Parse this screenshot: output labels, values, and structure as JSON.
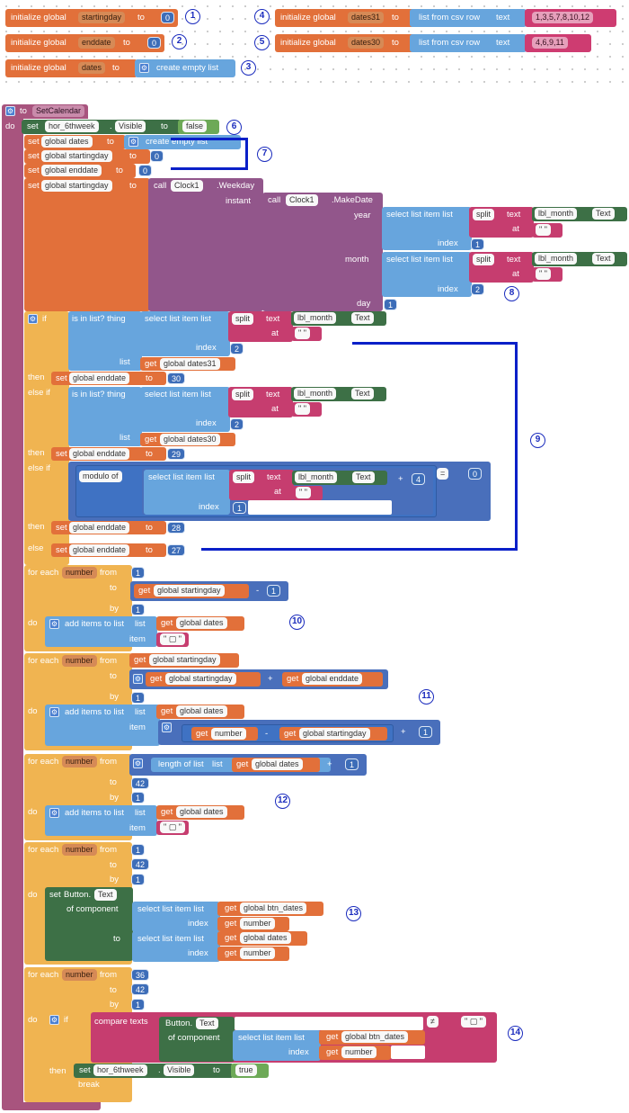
{
  "globals": {
    "startingday": {
      "kw": "initialize global",
      "name": "startingday",
      "to": "to",
      "value": "0",
      "marker": "1"
    },
    "enddate": {
      "kw": "initialize global",
      "name": "enddate",
      "to": "to",
      "value": "0",
      "marker": "2"
    },
    "dates": {
      "kw": "initialize global",
      "name": "dates",
      "to": "to",
      "value": "create empty list",
      "marker": "3"
    },
    "dates31": {
      "kw": "initialize global",
      "name": "dates31",
      "to": "to",
      "fn": "list from csv row",
      "textkw": "text",
      "value": "1,3,5,7,8,10,12",
      "marker": "4"
    },
    "dates30": {
      "kw": "initialize global",
      "name": "dates30",
      "to": "to",
      "fn": "list from csv row",
      "textkw": "text",
      "value": "4,6,9,11",
      "marker": "5"
    }
  },
  "proc": {
    "to": "to",
    "name": "SetCalendar",
    "do": "do"
  },
  "words": {
    "set": "set",
    "to": "to",
    "get": "get",
    "call": "call",
    "if": "if",
    "then": "then",
    "else_if": "else if",
    "else": "else",
    "for_each": "for each",
    "number": "number",
    "from": "from",
    "by": "by",
    "do": "do",
    "list": "list",
    "item": "item",
    "index": "index",
    "text": "text",
    "at": "at",
    "split": "split",
    "instant": "instant",
    "year": "year",
    "month": "month",
    "day": "day",
    "dash": "-",
    "plus": "+",
    "eq": "=",
    "neq": "≠",
    "break": "break",
    "of_component": "of component",
    "dot": ".",
    "select_list_item": "select list item  list",
    "is_in_list": "is in list? thing",
    "create_empty_list": "create empty list",
    "add_items": "add items to list",
    "modulo_of": "modulo of",
    "length_of_list": "length of list",
    "compare_texts": "compare texts",
    "quote": "\" \"",
    "quote_sp": "\" ▢ \""
  },
  "comps": {
    "hor6": "hor_6thweek",
    "visible": "Visible",
    "false": "false",
    "true": "true",
    "clock": "Clock1",
    "weekday": ".Weekday",
    "makedate": ".MakeDate",
    "lbl_month": "lbl_month",
    "text_prop": "Text",
    "button": "Button.",
    "btn_text": "Text"
  },
  "vars": {
    "dates": "global dates",
    "startingday": "global startingday",
    "enddate": "global enddate",
    "dates31": "global dates31",
    "dates30": "global dates30",
    "btn_dates": "global btn_dates",
    "number": "number"
  },
  "nums": {
    "zero": "0",
    "one": "1",
    "two": "2",
    "four": "4",
    "n27": "27",
    "n28": "28",
    "n29": "29",
    "n30": "30",
    "n36": "36",
    "n42": "42"
  },
  "markers": [
    "6",
    "7",
    "8",
    "9",
    "10",
    "11",
    "12",
    "13",
    "14"
  ],
  "colors": {
    "variable": "#e2703a",
    "control": "#f0b451",
    "procedure": "#a8547e",
    "list": "#67a5dd",
    "math": "#496fbb",
    "text": "#c63d6f",
    "component": "#3d7046",
    "annotation": "#1a2bbd"
  }
}
